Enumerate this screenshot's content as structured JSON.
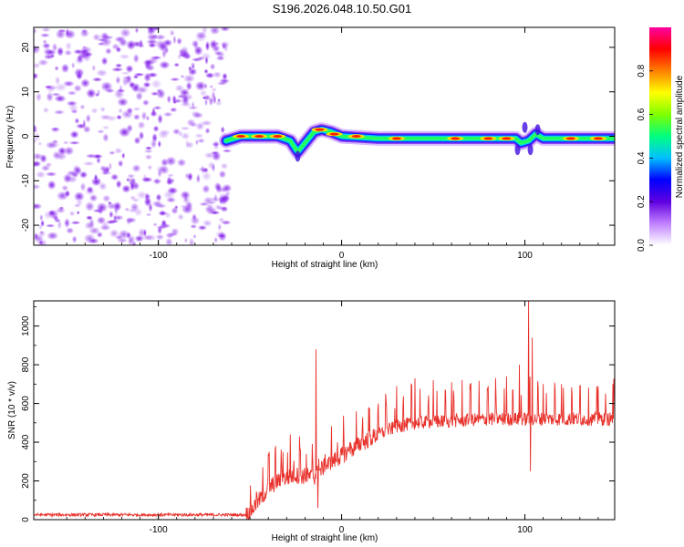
{
  "title": "S196.2026.048.10.50.G01",
  "chart_data": [
    {
      "type": "heatmap",
      "xlabel": "Height of straight line (km)",
      "ylabel": "Frequency (Hz)",
      "xlim": [
        -168,
        149
      ],
      "ylim": [
        -24.5,
        24.5
      ],
      "xticks": [
        -100,
        0,
        100
      ],
      "yticks": [
        -20,
        -10,
        0,
        10,
        20
      ],
      "noise_region_x": [
        -168,
        -62
      ],
      "signal_start_x": -63,
      "ridge": [
        {
          "x": -63,
          "y": -1.0
        },
        {
          "x": -55,
          "y": 0.0
        },
        {
          "x": -45,
          "y": 0.0
        },
        {
          "x": -35,
          "y": 0.0
        },
        {
          "x": -28,
          "y": -1.0
        },
        {
          "x": -24,
          "y": -3.5
        },
        {
          "x": -20,
          "y": -1.5
        },
        {
          "x": -15,
          "y": 1.0
        },
        {
          "x": -11,
          "y": 1.5
        },
        {
          "x": -6,
          "y": 1.0
        },
        {
          "x": 0,
          "y": 0.0
        },
        {
          "x": 20,
          "y": -0.5
        },
        {
          "x": 50,
          "y": -0.5
        },
        {
          "x": 70,
          "y": -0.5
        },
        {
          "x": 95,
          "y": -0.5
        },
        {
          "x": 98,
          "y": -1.5
        },
        {
          "x": 102,
          "y": -1.0
        },
        {
          "x": 106,
          "y": 0.5
        },
        {
          "x": 110,
          "y": -0.5
        },
        {
          "x": 149,
          "y": -0.5
        }
      ],
      "colorbar": {
        "label": "Normalized spectral amplitude",
        "ticks": [
          0.0,
          0.2,
          0.4,
          0.6,
          0.8
        ],
        "range": [
          0,
          1
        ],
        "colors": [
          "#ffffff",
          "#c080ff",
          "#6000e0",
          "#0000ff",
          "#00c0ff",
          "#00ff80",
          "#80ff00",
          "#ffff00",
          "#ff8000",
          "#ff0000",
          "#ff00a0"
        ]
      }
    },
    {
      "type": "line",
      "xlabel": "Height of straight line (km)",
      "ylabel": "SNR (10 * v/v)",
      "xlim": [
        -168,
        149
      ],
      "ylim": [
        0,
        1130
      ],
      "xticks": [
        -100,
        0,
        100
      ],
      "yticks": [
        0,
        200,
        400,
        600,
        800,
        1000
      ],
      "series": [
        {
          "name": "SNR",
          "color": "#e8302a",
          "baseline": [
            {
              "x": -168,
              "y": 25
            },
            {
              "x": -52,
              "y": 25
            },
            {
              "x": -50,
              "y": 40
            },
            {
              "x": -45,
              "y": 100
            },
            {
              "x": -40,
              "y": 160
            },
            {
              "x": -35,
              "y": 200
            },
            {
              "x": -25,
              "y": 230
            },
            {
              "x": -15,
              "y": 220
            },
            {
              "x": -10,
              "y": 270
            },
            {
              "x": 0,
              "y": 330
            },
            {
              "x": 10,
              "y": 390
            },
            {
              "x": 20,
              "y": 440
            },
            {
              "x": 30,
              "y": 480
            },
            {
              "x": 40,
              "y": 500
            },
            {
              "x": 60,
              "y": 510
            },
            {
              "x": 80,
              "y": 520
            },
            {
              "x": 149,
              "y": 520
            }
          ],
          "spikes": [
            {
              "x": -40,
              "y": 340
            },
            {
              "x": -36,
              "y": 380
            },
            {
              "x": -32,
              "y": 350
            },
            {
              "x": -28,
              "y": 440
            },
            {
              "x": -23,
              "y": 430
            },
            {
              "x": -14,
              "y": 880
            },
            {
              "x": 20,
              "y": 600
            },
            {
              "x": 24,
              "y": 650
            },
            {
              "x": 30,
              "y": 690
            },
            {
              "x": 40,
              "y": 730
            },
            {
              "x": 50,
              "y": 720
            },
            {
              "x": 60,
              "y": 710
            },
            {
              "x": 70,
              "y": 700
            },
            {
              "x": 80,
              "y": 690
            },
            {
              "x": 90,
              "y": 740
            },
            {
              "x": 97,
              "y": 800
            },
            {
              "x": 102,
              "y": 1130
            },
            {
              "x": 104,
              "y": 940
            },
            {
              "x": 110,
              "y": 700
            },
            {
              "x": 120,
              "y": 700
            },
            {
              "x": 130,
              "y": 690
            },
            {
              "x": 140,
              "y": 690
            },
            {
              "x": 148,
              "y": 700
            }
          ],
          "dips": [
            {
              "x": -13,
              "y": 60
            },
            {
              "x": 103,
              "y": 250
            }
          ]
        }
      ]
    }
  ]
}
